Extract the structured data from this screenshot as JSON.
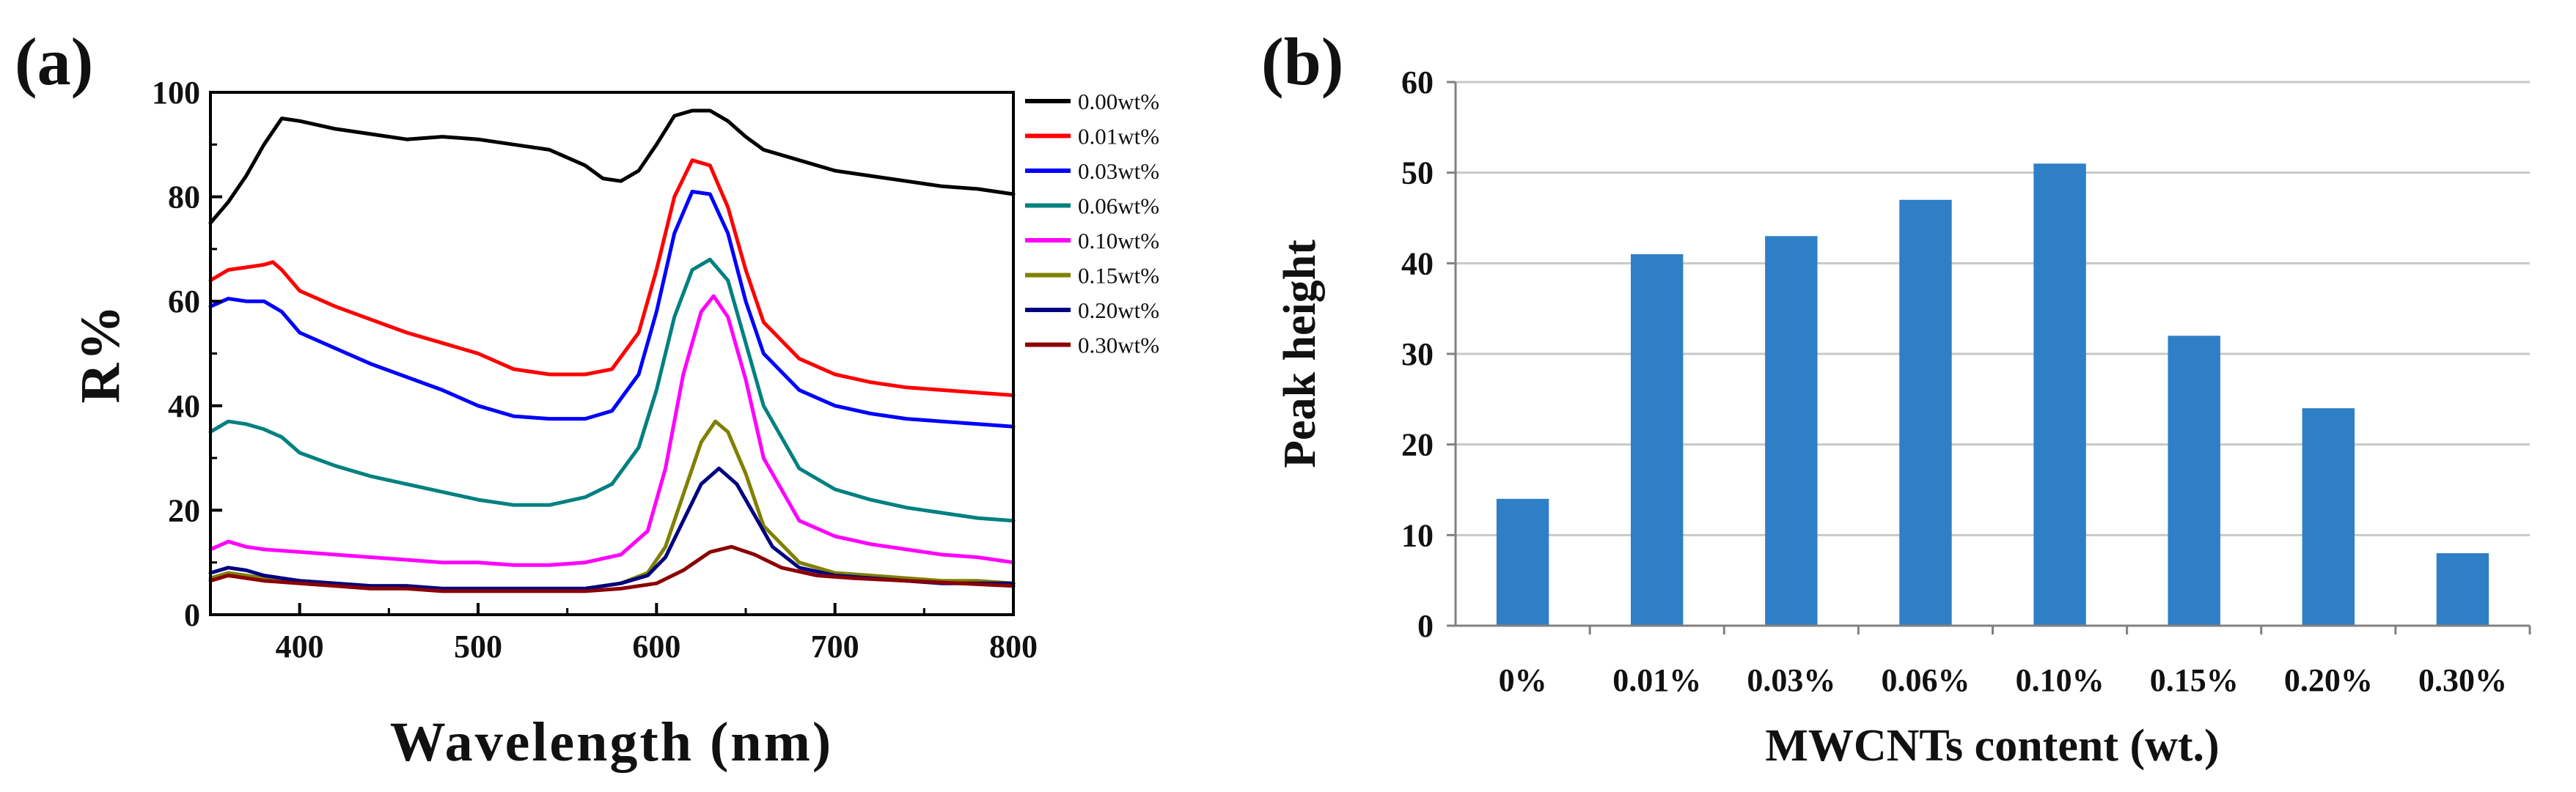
{
  "figure": {
    "panel_a_label": "(a)",
    "panel_b_label": "(b)"
  },
  "chart_data": [
    {
      "type": "line",
      "panel": "(a)",
      "xlabel": "Wavelength (nm)",
      "ylabel": "R%",
      "xlim": [
        350,
        800
      ],
      "ylim": [
        0,
        100
      ],
      "xticks": [
        400,
        500,
        600,
        700,
        800
      ],
      "yticks": [
        0,
        20,
        40,
        60,
        80,
        100
      ],
      "legend_position": "right",
      "series": [
        {
          "name": "0.00wt%",
          "color": "#000000",
          "points": [
            [
              350,
              75
            ],
            [
              360,
              79
            ],
            [
              370,
              84
            ],
            [
              380,
              90
            ],
            [
              390,
              95
            ],
            [
              400,
              94.5
            ],
            [
              420,
              93
            ],
            [
              440,
              92
            ],
            [
              460,
              91
            ],
            [
              480,
              91.5
            ],
            [
              500,
              91
            ],
            [
              520,
              90
            ],
            [
              540,
              89
            ],
            [
              560,
              86
            ],
            [
              570,
              83.5
            ],
            [
              580,
              83
            ],
            [
              590,
              85
            ],
            [
              600,
              90
            ],
            [
              610,
              95.5
            ],
            [
              620,
              96.5
            ],
            [
              630,
              96.5
            ],
            [
              640,
              94.5
            ],
            [
              650,
              91.5
            ],
            [
              660,
              89
            ],
            [
              680,
              87
            ],
            [
              700,
              85
            ],
            [
              720,
              84
            ],
            [
              740,
              83
            ],
            [
              760,
              82
            ],
            [
              780,
              81.5
            ],
            [
              800,
              80.5
            ]
          ]
        },
        {
          "name": "0.01wt%",
          "color": "#ff0000",
          "points": [
            [
              350,
              64
            ],
            [
              360,
              66
            ],
            [
              370,
              66.5
            ],
            [
              380,
              67
            ],
            [
              385,
              67.5
            ],
            [
              390,
              66
            ],
            [
              400,
              62
            ],
            [
              420,
              59
            ],
            [
              440,
              56.5
            ],
            [
              460,
              54
            ],
            [
              480,
              52
            ],
            [
              500,
              50
            ],
            [
              520,
              47
            ],
            [
              540,
              46
            ],
            [
              560,
              46
            ],
            [
              575,
              47
            ],
            [
              590,
              54
            ],
            [
              600,
              66
            ],
            [
              610,
              80
            ],
            [
              620,
              87
            ],
            [
              630,
              86
            ],
            [
              640,
              78
            ],
            [
              650,
              66
            ],
            [
              660,
              56
            ],
            [
              680,
              49
            ],
            [
              700,
              46
            ],
            [
              720,
              44.5
            ],
            [
              740,
              43.5
            ],
            [
              760,
              43
            ],
            [
              780,
              42.5
            ],
            [
              800,
              42
            ]
          ]
        },
        {
          "name": "0.03wt%",
          "color": "#0000ff",
          "points": [
            [
              350,
              59
            ],
            [
              360,
              60.5
            ],
            [
              370,
              60
            ],
            [
              380,
              60
            ],
            [
              385,
              59
            ],
            [
              390,
              58
            ],
            [
              400,
              54
            ],
            [
              420,
              51
            ],
            [
              440,
              48
            ],
            [
              460,
              45.5
            ],
            [
              480,
              43
            ],
            [
              500,
              40
            ],
            [
              520,
              38
            ],
            [
              540,
              37.5
            ],
            [
              560,
              37.5
            ],
            [
              575,
              39
            ],
            [
              590,
              46
            ],
            [
              600,
              58
            ],
            [
              610,
              73
            ],
            [
              620,
              81
            ],
            [
              630,
              80.5
            ],
            [
              640,
              73
            ],
            [
              650,
              60
            ],
            [
              660,
              50
            ],
            [
              680,
              43
            ],
            [
              700,
              40
            ],
            [
              720,
              38.5
            ],
            [
              740,
              37.5
            ],
            [
              760,
              37
            ],
            [
              780,
              36.5
            ],
            [
              800,
              36
            ]
          ]
        },
        {
          "name": "0.06wt%",
          "color": "#008080",
          "points": [
            [
              350,
              35
            ],
            [
              360,
              37
            ],
            [
              370,
              36.5
            ],
            [
              380,
              35.5
            ],
            [
              390,
              34
            ],
            [
              400,
              31
            ],
            [
              420,
              28.5
            ],
            [
              440,
              26.5
            ],
            [
              460,
              25
            ],
            [
              480,
              23.5
            ],
            [
              500,
              22
            ],
            [
              520,
              21
            ],
            [
              540,
              21
            ],
            [
              560,
              22.5
            ],
            [
              575,
              25
            ],
            [
              590,
              32
            ],
            [
              600,
              43
            ],
            [
              610,
              57
            ],
            [
              620,
              66
            ],
            [
              630,
              68
            ],
            [
              640,
              64
            ],
            [
              650,
              52
            ],
            [
              660,
              40
            ],
            [
              680,
              28
            ],
            [
              700,
              24
            ],
            [
              720,
              22
            ],
            [
              740,
              20.5
            ],
            [
              760,
              19.5
            ],
            [
              780,
              18.5
            ],
            [
              800,
              18
            ]
          ]
        },
        {
          "name": "0.10wt%",
          "color": "#ff00ff",
          "points": [
            [
              350,
              12.5
            ],
            [
              360,
              14
            ],
            [
              370,
              13
            ],
            [
              380,
              12.5
            ],
            [
              400,
              12
            ],
            [
              420,
              11.5
            ],
            [
              440,
              11
            ],
            [
              460,
              10.5
            ],
            [
              480,
              10
            ],
            [
              500,
              10
            ],
            [
              520,
              9.5
            ],
            [
              540,
              9.5
            ],
            [
              560,
              10
            ],
            [
              580,
              11.5
            ],
            [
              595,
              16
            ],
            [
              605,
              28
            ],
            [
              615,
              46
            ],
            [
              625,
              58
            ],
            [
              632,
              61
            ],
            [
              640,
              57
            ],
            [
              650,
              45
            ],
            [
              660,
              30
            ],
            [
              680,
              18
            ],
            [
              700,
              15
            ],
            [
              720,
              13.5
            ],
            [
              740,
              12.5
            ],
            [
              760,
              11.5
            ],
            [
              780,
              11
            ],
            [
              800,
              10
            ]
          ]
        },
        {
          "name": "0.15wt%",
          "color": "#808000",
          "points": [
            [
              350,
              7
            ],
            [
              360,
              8
            ],
            [
              370,
              7.5
            ],
            [
              380,
              7
            ],
            [
              400,
              6.5
            ],
            [
              420,
              6
            ],
            [
              440,
              5.5
            ],
            [
              460,
              5.5
            ],
            [
              480,
              5
            ],
            [
              500,
              5
            ],
            [
              520,
              5
            ],
            [
              540,
              5
            ],
            [
              560,
              5
            ],
            [
              580,
              6
            ],
            [
              595,
              8
            ],
            [
              605,
              13
            ],
            [
              615,
              23
            ],
            [
              625,
              33
            ],
            [
              633,
              37
            ],
            [
              640,
              35
            ],
            [
              650,
              27
            ],
            [
              660,
              17
            ],
            [
              680,
              10
            ],
            [
              700,
              8
            ],
            [
              720,
              7.5
            ],
            [
              740,
              7
            ],
            [
              760,
              6.5
            ],
            [
              780,
              6.5
            ],
            [
              800,
              6
            ]
          ]
        },
        {
          "name": "0.20wt%",
          "color": "#000080",
          "points": [
            [
              350,
              8
            ],
            [
              360,
              9
            ],
            [
              370,
              8.5
            ],
            [
              380,
              7.5
            ],
            [
              400,
              6.5
            ],
            [
              420,
              6
            ],
            [
              440,
              5.5
            ],
            [
              460,
              5.5
            ],
            [
              480,
              5
            ],
            [
              500,
              5
            ],
            [
              520,
              5
            ],
            [
              540,
              5
            ],
            [
              560,
              5
            ],
            [
              580,
              6
            ],
            [
              595,
              7.5
            ],
            [
              605,
              11
            ],
            [
              615,
              18
            ],
            [
              625,
              25
            ],
            [
              635,
              28
            ],
            [
              645,
              25
            ],
            [
              655,
              19
            ],
            [
              665,
              13
            ],
            [
              680,
              9
            ],
            [
              700,
              7.5
            ],
            [
              720,
              7
            ],
            [
              740,
              6.5
            ],
            [
              760,
              6
            ],
            [
              780,
              6
            ],
            [
              800,
              6
            ]
          ]
        },
        {
          "name": "0.30wt%",
          "color": "#8b0000",
          "points": [
            [
              350,
              6.5
            ],
            [
              360,
              7.5
            ],
            [
              370,
              7
            ],
            [
              380,
              6.5
            ],
            [
              400,
              6
            ],
            [
              420,
              5.5
            ],
            [
              440,
              5
            ],
            [
              460,
              5
            ],
            [
              480,
              4.5
            ],
            [
              500,
              4.5
            ],
            [
              520,
              4.5
            ],
            [
              540,
              4.5
            ],
            [
              560,
              4.5
            ],
            [
              580,
              5
            ],
            [
              600,
              6
            ],
            [
              615,
              8.5
            ],
            [
              630,
              12
            ],
            [
              642,
              13
            ],
            [
              655,
              11.5
            ],
            [
              670,
              9
            ],
            [
              690,
              7.5
            ],
            [
              710,
              7
            ],
            [
              740,
              6.5
            ],
            [
              770,
              6
            ],
            [
              800,
              5.5
            ]
          ]
        }
      ]
    },
    {
      "type": "bar",
      "panel": "(b)",
      "xlabel": "MWCNTs content (wt.)",
      "ylabel": "Peak height",
      "ylim": [
        0,
        60
      ],
      "yticks": [
        0,
        10,
        20,
        30,
        40,
        50,
        60
      ],
      "grid": true,
      "color": "#2f7fc6",
      "categories": [
        "0%",
        "0.01%",
        "0.03%",
        "0.06%",
        "0.10%",
        "0.15%",
        "0.20%",
        "0.30%"
      ],
      "values": [
        14,
        41,
        43,
        47,
        51,
        32,
        24,
        8
      ]
    }
  ]
}
